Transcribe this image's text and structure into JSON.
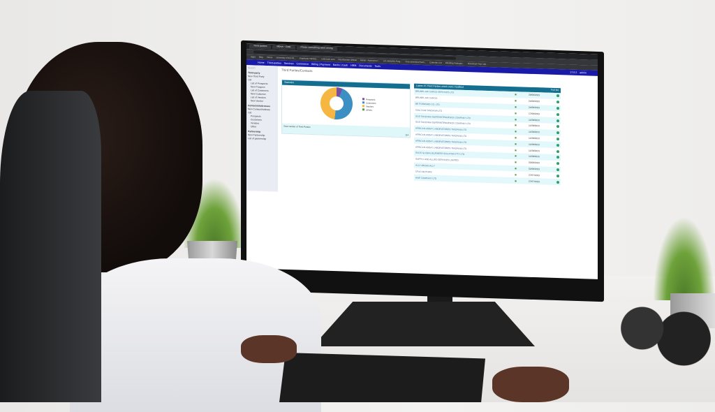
{
  "browser": {
    "tabs": [
      "Third parties",
      "Mbwe - Gate",
      "Photo: something went wrong"
    ],
    "bookmarks": [
      "Apps",
      "Blog",
      "Yahoo",
      "University of the Pe...",
      "Employee training...",
      "LMS tech.com",
      "Paul Banner Official",
      "Moloti - Awesome f...",
      "CK JAMURA Prog...",
      "Free download Sam...",
      "Calendar List",
      "Wedding Videogra...",
      "Download Free Clip..."
    ]
  },
  "nav": {
    "items": [
      "Home",
      "Third-parties",
      "Services",
      "Commerce",
      "Billing | Payment",
      "Banks | Cash",
      "HRM",
      "Documents",
      "Tools"
    ],
    "version": "17.0.2",
    "user": "admin"
  },
  "sidebar": {
    "search": "Search",
    "sections": [
      {
        "title": "Third-party",
        "items": [
          "New Third Party",
          "List",
          "List of Prospects",
          "New Prospect",
          "List of Customers",
          "New Customer",
          "List of Vendors",
          "New Vendor"
        ]
      },
      {
        "title": "Contacts/Addresses",
        "items": [
          "New Contact/Address",
          "List",
          "Prospects",
          "Customers",
          "Vendors",
          "Other"
        ]
      },
      {
        "title": "Partnership",
        "items": [
          "New Partnership",
          "List of partnership"
        ]
      }
    ]
  },
  "page": {
    "title": "Third Parties/Contacts"
  },
  "stats": {
    "title": "Statistics",
    "legend": [
      "Prospects",
      "Customers",
      "Vendors",
      "Others"
    ],
    "colors": [
      "#7b4da0",
      "#3b8fc2",
      "#f5b642",
      "#5a9a4a"
    ],
    "total_label": "Total number of Third Parties",
    "total": "114"
  },
  "latest": {
    "title": "Latest 15 Third Parties which were modified",
    "full_list": "Full list",
    "rows": [
      {
        "name": "BRUNEL AIR CARGO SERVICES LTD",
        "date": "29/08/2023"
      },
      {
        "name": "BRUNEL AIR CARGO",
        "date": "24/08/2023"
      },
      {
        "name": "BE FORWARD CO. LTD",
        "date": "24/08/2023"
      },
      {
        "name": "CMA CGM TANZANIA LTD",
        "date": "17/08/2023"
      },
      {
        "name": "SGS TANZANIA SUPERINTENDENCE COMPANY LTD",
        "date": "11/08/2023"
      },
      {
        "name": "SGS TANZANIA SUPERINTENDENCE COMPANY LTD",
        "date": "11/08/2023"
      },
      {
        "name": "AFRICAN ASSAY LABORATORIES TANZANIA LTD",
        "date": "11/08/2023"
      },
      {
        "name": "AFRICAN ASSAY LABORATORIES TANZANIA LTD",
        "date": "11/08/2023"
      },
      {
        "name": "AFRICAN ASSAY LABORATORIES TANZANIA LTD",
        "date": "11/08/2023"
      },
      {
        "name": "AFRICAN ASSAY LABORATORIES TANZANIA LTD",
        "date": "11/08/2023"
      },
      {
        "name": "SAGS GLOBAL BUSINESS SOLUTION PTY LTD",
        "date": "11/08/2023"
      },
      {
        "name": "SUPPLY AND ALLIED SERVICES LIMITED",
        "date": "03/08/2023"
      },
      {
        "name": "ALLY ABOUD ALLY",
        "date": "02/08/2023"
      },
      {
        "name": "CFAO MOTORS",
        "date": "27/07/2023"
      },
      {
        "name": "HNE COMPANY LTD",
        "date": "27/07/2023"
      }
    ]
  }
}
